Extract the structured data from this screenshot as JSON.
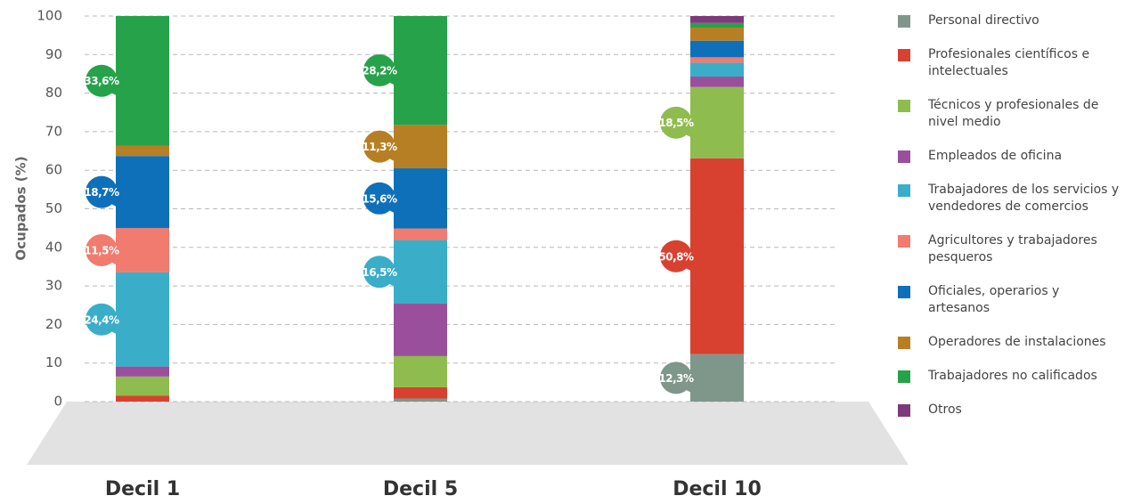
{
  "chart_data": {
    "type": "stacked-bar",
    "y_label": "Ocupados (%)",
    "categories": [
      "Decil 1",
      "Decil 5",
      "Decil 10"
    ],
    "ylim": [
      0,
      100
    ],
    "yticks": [
      0,
      10,
      20,
      30,
      40,
      50,
      60,
      70,
      80,
      90,
      100
    ],
    "grid": true,
    "series": [
      {
        "name": "Personal directivo",
        "color": "#7f978a",
        "values": [
          0,
          0.8,
          12.3
        ],
        "value_labels": [
          null,
          null,
          "12,3%"
        ]
      },
      {
        "name": "Profesionales científicos e intelectuales",
        "color": "#d8412f",
        "values": [
          1.5,
          2.9,
          50.8
        ],
        "value_labels": [
          null,
          null,
          "50,8%"
        ]
      },
      {
        "name": "Técnicos y profesionales de nivel medio",
        "color": "#8fbc4f",
        "values": [
          5.0,
          8.1,
          18.5
        ],
        "value_labels": [
          null,
          null,
          "18,5%"
        ]
      },
      {
        "name": "Empleados de oficina",
        "color": "#9a4f9c",
        "values": [
          2.6,
          13.6,
          2.7
        ],
        "value_labels": [
          null,
          null,
          null
        ]
      },
      {
        "name": "Trabajadores de los servicios y vendedores de comercios",
        "color": "#3aaec8",
        "values": [
          24.4,
          16.5,
          3.6
        ],
        "value_labels": [
          "24,4%",
          "16,5%",
          null
        ]
      },
      {
        "name": "Agricultores y trabajadores pesqueros",
        "color": "#f07b6e",
        "values": [
          11.5,
          3.0,
          1.4
        ],
        "value_labels": [
          "11,5%",
          null,
          null
        ]
      },
      {
        "name": "Oficiales, operarios y artesanos",
        "color": "#0e70b9",
        "values": [
          18.7,
          15.6,
          4.3
        ],
        "value_labels": [
          "18,7%",
          "15,6%",
          null
        ]
      },
      {
        "name": "Operadores de instalaciones",
        "color": "#b77f24",
        "values": [
          2.7,
          11.3,
          3.4
        ],
        "value_labels": [
          null,
          "11,3%",
          null
        ]
      },
      {
        "name": "Trabajadores no calificados",
        "color": "#26a24a",
        "values": [
          33.6,
          28.2,
          1.2
        ],
        "value_labels": [
          "33,6%",
          "28,2%",
          null
        ]
      },
      {
        "name": "Otros",
        "color": "#7d3a7a",
        "values": [
          0,
          0,
          1.8
        ],
        "value_labels": [
          null,
          null,
          null
        ]
      }
    ]
  }
}
